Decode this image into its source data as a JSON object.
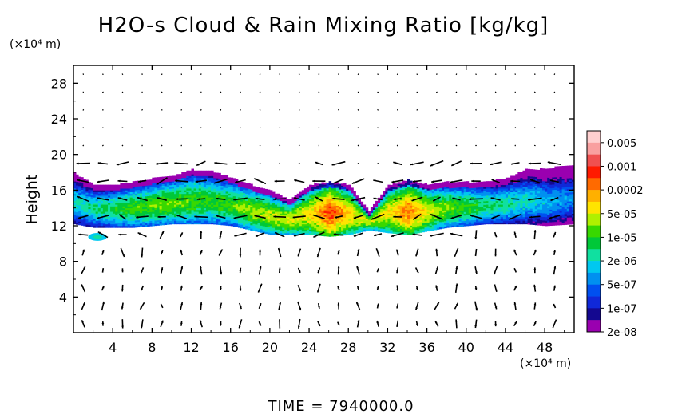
{
  "chart_data": {
    "type": "heatmap",
    "title": "H2O-s Cloud & Rain Mixing Ratio [kg/kg]",
    "ylabel": "Height",
    "x_unit": "(×10⁴ m)",
    "y_unit": "(×10⁴ m)",
    "xlim": [
      0,
      51
    ],
    "ylim": [
      0,
      30
    ],
    "x_ticks": [
      4,
      8,
      12,
      16,
      20,
      24,
      28,
      32,
      36,
      40,
      44,
      48
    ],
    "y_ticks": [
      4,
      8,
      12,
      16,
      20,
      24,
      28
    ],
    "overlay": "wind vectors",
    "colorbar": {
      "labels": [
        "0.005",
        "0.001",
        "0.0002",
        "5e-05",
        "1e-05",
        "2e-06",
        "5e-07",
        "1e-07",
        "2e-08"
      ],
      "colors": [
        "#ffd0d0",
        "#f9a0a0",
        "#f05050",
        "#ff1a00",
        "#ff6a00",
        "#ffb000",
        "#ffe400",
        "#b0f000",
        "#38d800",
        "#00c838",
        "#10e0a0",
        "#00c8f0",
        "#0090f0",
        "#0050f0",
        "#1028d8",
        "#140890",
        "#9a00b0"
      ]
    },
    "cloud_layer": {
      "columns_x": [
        0,
        2,
        4,
        6,
        8,
        10,
        12,
        14,
        16,
        18,
        20,
        22,
        24,
        26,
        28,
        30,
        32,
        34,
        36,
        38,
        40,
        42,
        44,
        46,
        48,
        51
      ],
      "base_height": [
        12.2,
        11.8,
        11.8,
        11.8,
        12,
        12.2,
        12.2,
        12.2,
        12,
        11.5,
        11,
        11,
        11,
        10.8,
        11,
        11.5,
        11.2,
        11,
        11.4,
        11.8,
        12,
        12.2,
        12.2,
        12.2,
        12,
        12.2
      ],
      "top_height": [
        17.8,
        16.5,
        16.5,
        16.8,
        17.2,
        17.5,
        18.2,
        18,
        17.3,
        16.5,
        15.8,
        14.8,
        16.5,
        16.8,
        16.5,
        13.5,
        16.5,
        17,
        16.5,
        16.8,
        16.8,
        16.8,
        17.2,
        18.2,
        18.3,
        18.8
      ],
      "log10_peak_mixing_ratio": [
        -5.7,
        -5.5,
        -5.2,
        -5.0,
        -4.8,
        -4.8,
        -4.9,
        -5.0,
        -4.9,
        -4.6,
        -4.5,
        -4.4,
        -4.2,
        -3.3,
        -4.1,
        -4.5,
        -4.2,
        -3.6,
        -4.3,
        -4.8,
        -5.0,
        -5.3,
        -5.5,
        -5.7,
        -6.0,
        -6.3
      ],
      "small_cloud": {
        "x": [
          1.5,
          3.4
        ],
        "height": [
          10.4,
          11.1
        ]
      }
    }
  },
  "footer": {
    "time_label": "TIME = 7940000.0"
  }
}
